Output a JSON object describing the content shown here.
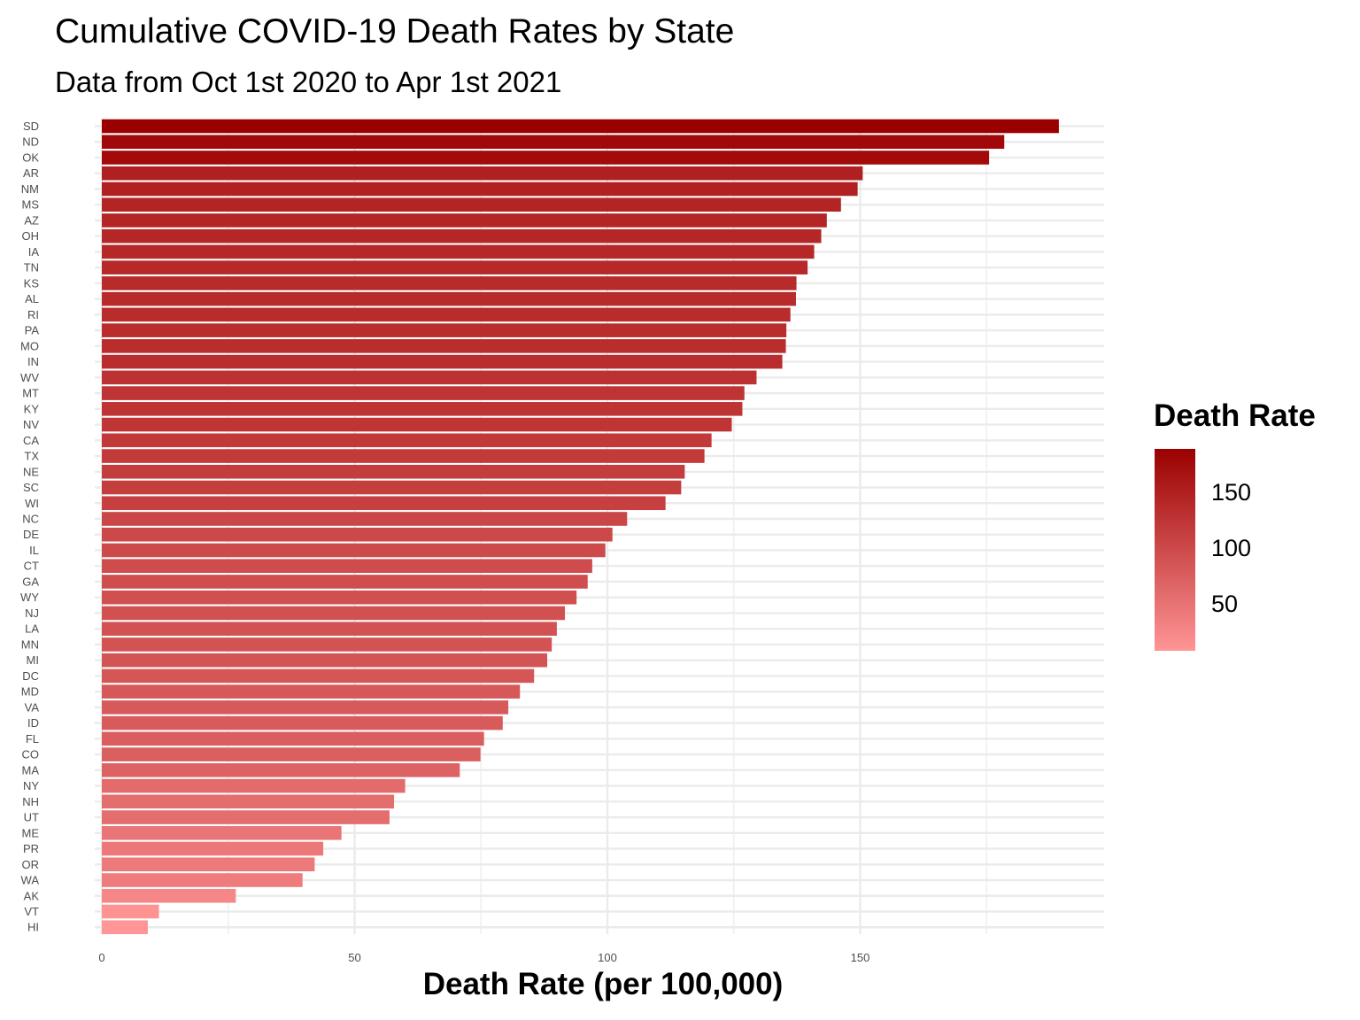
{
  "chart_data": {
    "type": "bar",
    "orientation": "horizontal",
    "title": "Cumulative COVID-19 Death Rates by State",
    "subtitle": "Data from Oct 1st 2020 to Apr 1st 2021",
    "xlabel": "Death Rate (per 100,000)",
    "ylabel": "",
    "xlim": [
      0,
      198
    ],
    "xticks": [
      0,
      50,
      100,
      150
    ],
    "grid": true,
    "categories": [
      "SD",
      "ND",
      "OK",
      "AR",
      "NM",
      "MS",
      "AZ",
      "OH",
      "IA",
      "TN",
      "KS",
      "AL",
      "RI",
      "PA",
      "MO",
      "IN",
      "WV",
      "MT",
      "KY",
      "NV",
      "CA",
      "TX",
      "NE",
      "SC",
      "WI",
      "NC",
      "DE",
      "IL",
      "CT",
      "GA",
      "WY",
      "NJ",
      "LA",
      "MN",
      "MI",
      "DC",
      "MD",
      "VA",
      "ID",
      "FL",
      "CO",
      "MA",
      "NY",
      "NH",
      "UT",
      "ME",
      "PR",
      "OR",
      "WA",
      "AK",
      "VT",
      "HI"
    ],
    "values": [
      189.3,
      178.5,
      175.5,
      150.5,
      149.5,
      146.2,
      143.4,
      142.3,
      140.9,
      139.6,
      137.4,
      137.3,
      136.2,
      135.4,
      135.3,
      134.6,
      129.5,
      127.1,
      126.7,
      124.6,
      120.6,
      119.2,
      115.3,
      114.6,
      111.5,
      103.9,
      101.0,
      99.6,
      97.0,
      96.1,
      93.9,
      91.6,
      90.0,
      89.0,
      88.1,
      85.5,
      82.7,
      80.4,
      79.3,
      75.6,
      74.9,
      70.8,
      60.0,
      57.8,
      56.9,
      47.4,
      43.8,
      42.1,
      39.7,
      26.5,
      11.3,
      9.1
    ],
    "legend": {
      "title": "Death Rate",
      "position": "right",
      "ticks": [
        50,
        100,
        150
      ],
      "min": 9.1,
      "max": 189.3,
      "color_low": "#ff9596",
      "color_high": "#9b0000"
    }
  }
}
